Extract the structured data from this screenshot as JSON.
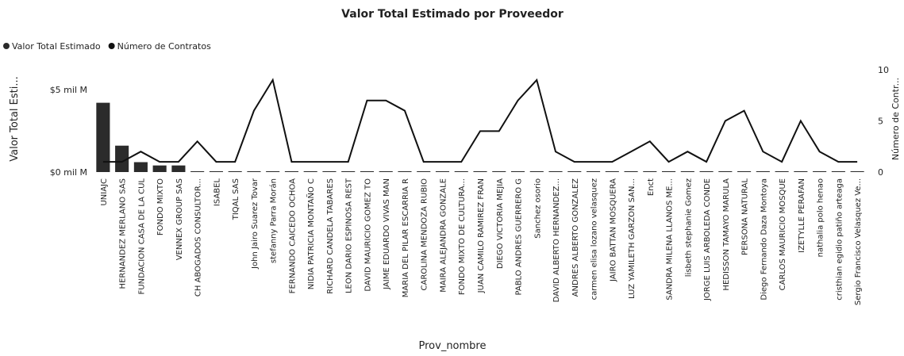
{
  "chart_data": {
    "type": "combo",
    "title": "Valor Total Estimado por Proveedor",
    "x_label": "Prov_nombre",
    "y_label": "Valor Total Esti...",
    "y2_label": "Número de Contr...",
    "categories": [
      "UNIAJC",
      "HERNANDEZ MERLANO SAS",
      "FUNDACION CASA DE LA CUL",
      "FONDO MIXTO",
      "VENNEX GROUP SAS",
      "CH ABOGADOS CONSULTOR...",
      "ISABEL",
      "TIQAL SAS",
      "John Jairo Suarez Tovar",
      "stefanny Parra Morán",
      "FERNANDO CAICEDO OCHOA",
      "NIDIA PATRICIA MONTAÑO C",
      "RICHARD CANDELA TABARES",
      "LEON DARIO ESPINOSA REST",
      "DAVID MAURICIO GOMEZ TO",
      "JAIME EDUARDO VIVAS MAN",
      "MARIA DEL PILAR ESCARRIA R",
      "CAROLINA MENDOZA RUBIO",
      "MAIRA ALEJANDRA GONZALE",
      "FONDO MIXTO DE CULTURA...",
      "JUAN CAMILO RAMIREZ FRAN",
      "DIEGO VICTORIA MEJIA",
      "PABLO ANDRES GUERRERO G",
      "Sanchez osorio",
      "DAVID ALBERTO HERNANDEZ...",
      "ANDRES ALBERTO GONZALEZ",
      "carmen elisa lozano velasquez",
      "JAIRO BATTAN MOSQUERA",
      "LUZ YAMILETH GARZON SAN...",
      "Enct",
      "SANDRA MILENA LLANOS ME...",
      "lisbeth stephanie Gomez",
      "JORGE LUIS ARBOLEDA CONDE",
      "HEDISSON TAMAYO MARULA",
      "PERSONA NATURAL",
      "Diego Fernando Daza Montoya",
      "CARLOS MAURICIO MOSQUE",
      "IZETYLLE PERAFAN",
      "nathalia polo henao",
      "cristhian egidio patiño arteaga",
      "Sergio Francisco Velasquez Ve..."
    ],
    "series": [
      {
        "name": "Valor Total Estimado",
        "type": "bar",
        "color": "#2b2b2b",
        "values": [
          4200000000,
          1600000000,
          600000000,
          400000000,
          400000000,
          50000000,
          50000000,
          50000000,
          50000000,
          50000000,
          50000000,
          50000000,
          50000000,
          50000000,
          50000000,
          50000000,
          50000000,
          50000000,
          50000000,
          50000000,
          50000000,
          50000000,
          50000000,
          50000000,
          50000000,
          50000000,
          50000000,
          50000000,
          50000000,
          50000000,
          50000000,
          50000000,
          50000000,
          50000000,
          50000000,
          50000000,
          50000000,
          50000000,
          50000000,
          50000000,
          50000000
        ]
      },
      {
        "name": "Número de Contratos",
        "type": "line",
        "axis": "y2",
        "color": "#111111",
        "values": [
          1,
          1,
          2,
          1,
          1,
          3,
          1,
          1,
          6,
          9,
          1,
          1,
          1,
          1,
          7,
          7,
          6,
          1,
          1,
          1,
          4,
          4,
          7,
          9,
          2,
          1,
          1,
          1,
          2,
          3,
          1,
          2,
          1,
          5,
          6,
          2,
          1,
          5,
          2,
          1,
          1
        ]
      }
    ],
    "ylim": [
      0,
      6200000000
    ],
    "yticks": [
      {
        "value": 0,
        "label": "$0 mil M"
      },
      {
        "value": 5000000000,
        "label": "$5 mil M"
      }
    ],
    "y2lim": [
      0,
      10
    ],
    "y2ticks": [
      0,
      5,
      10
    ],
    "legend": "top-left"
  }
}
